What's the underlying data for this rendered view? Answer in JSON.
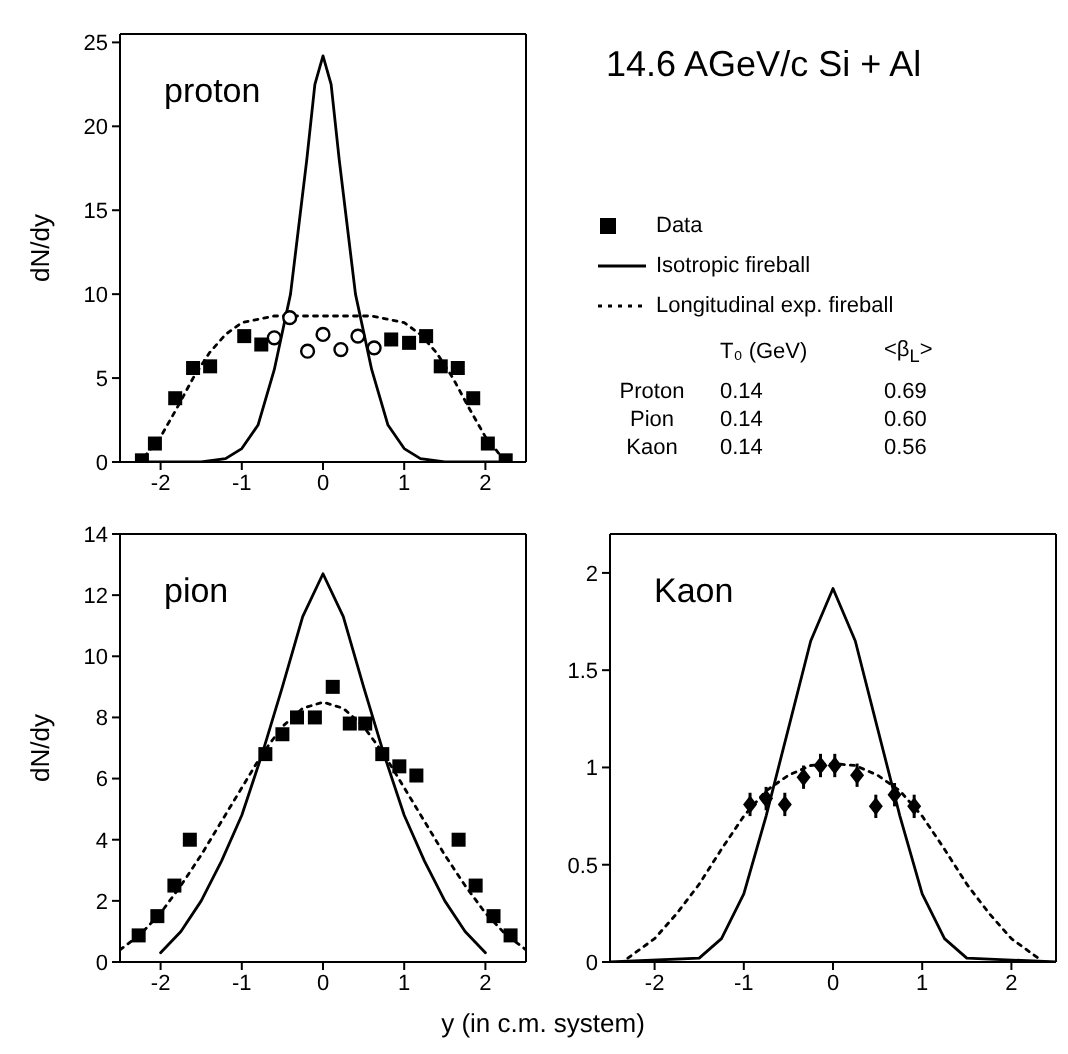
{
  "chart_data": [
    {
      "type": "line",
      "ylabel": "dN/dy",
      "annotations": [
        "proton"
      ],
      "xlim": [
        -2.5,
        2.5
      ],
      "xticks": [
        -2,
        -1,
        0,
        1,
        2
      ],
      "ylim": [
        0,
        25.5
      ],
      "yticks": [
        0,
        5,
        10,
        15,
        20,
        25
      ],
      "legend": "right",
      "series": [
        {
          "name": "Data",
          "type": "scatter",
          "marker": "square",
          "color": "#000000",
          "x": [
            -2.23,
            -2.07,
            -1.82,
            -1.6,
            -1.39,
            -0.97,
            -0.76,
            0.84,
            1.06,
            1.27,
            1.45,
            1.66,
            1.85,
            2.03,
            2.25
          ],
          "values": [
            0.1,
            1.1,
            3.8,
            5.6,
            5.7,
            7.5,
            7.0,
            7.3,
            7.1,
            7.5,
            5.7,
            5.6,
            3.8,
            1.1,
            0.1
          ]
        },
        {
          "type": "scatter",
          "marker": "circle",
          "color": "#000000",
          "x": [
            -0.6,
            -0.41,
            -0.19,
            0,
            0.22,
            0.43,
            0.63
          ],
          "values": [
            7.4,
            8.6,
            6.6,
            7.6,
            6.7,
            7.5,
            6.8
          ]
        },
        {
          "name": "Isotropic fireball",
          "line_style": "solid",
          "color": "#000000",
          "x": [
            -2.3,
            -1.5,
            -1.2,
            -1.0,
            -0.8,
            -0.6,
            -0.4,
            -0.3,
            -0.2,
            -0.1,
            0,
            0.1,
            0.2,
            0.3,
            0.4,
            0.6,
            0.8,
            1.0,
            1.2,
            1.5,
            2.3
          ],
          "values": [
            0,
            0,
            0.2,
            0.8,
            2.2,
            5.5,
            10,
            14,
            18,
            22.5,
            24.2,
            22.5,
            18,
            14,
            10,
            5.5,
            2.2,
            0.8,
            0.2,
            0,
            0
          ]
        },
        {
          "name": "Longitudinal exp. fireball",
          "line_style": "dotted",
          "color": "#000000",
          "x": [
            -2.2,
            -2.0,
            -1.8,
            -1.6,
            -1.4,
            -1.2,
            -1.0,
            -0.6,
            0,
            0.6,
            1.0,
            1.2,
            1.4,
            1.6,
            1.8,
            2.0,
            2.2
          ],
          "values": [
            0.3,
            1.5,
            3.2,
            5.0,
            6.5,
            7.6,
            8.3,
            8.7,
            8.7,
            8.7,
            8.3,
            7.6,
            6.5,
            5.0,
            3.2,
            1.5,
            0.3
          ]
        }
      ]
    },
    {
      "type": "other",
      "title": "14.6 AGeV/c Si + Al",
      "annotations": [
        "T₀ (GeV)",
        "<β$_{L}$>",
        "Proton",
        "0.14",
        "0.69",
        "Pion",
        "0.14",
        "0.60",
        "Kaon",
        "0.14",
        "0.56"
      ]
    },
    {
      "type": "line",
      "ylabel": "dN/dy",
      "annotations": [
        "pion"
      ],
      "xlim": [
        -2.5,
        2.5
      ],
      "xticks": [
        -2,
        -1,
        0,
        1,
        2
      ],
      "ylim": [
        0,
        14
      ],
      "yticks": [
        0,
        2,
        4,
        6,
        8,
        10,
        12,
        14
      ],
      "series": [
        {
          "type": "scatter",
          "marker": "square",
          "color": "#000000",
          "x": [
            -2.27,
            -2.04,
            -1.83,
            -1.64,
            -0.71,
            -0.5,
            -0.32,
            -0.1,
            0.12,
            0.33,
            0.52,
            0.73,
            0.94,
            1.15,
            1.67,
            1.88,
            2.1,
            2.31
          ],
          "values": [
            0.87,
            1.5,
            2.5,
            4.0,
            6.8,
            7.45,
            8.0,
            8.0,
            9.0,
            7.8,
            7.8,
            6.8,
            6.4,
            6.1,
            4.0,
            2.5,
            1.5,
            0.87
          ]
        },
        {
          "line_style": "solid",
          "color": "#000000",
          "x": [
            -2,
            -1.75,
            -1.5,
            -1.25,
            -1,
            -0.75,
            -0.5,
            -0.25,
            0,
            0.25,
            0.5,
            0.75,
            1,
            1.25,
            1.5,
            1.75,
            2
          ],
          "values": [
            0.3,
            1.0,
            2.0,
            3.3,
            4.8,
            6.8,
            9.0,
            11.3,
            12.7,
            11.3,
            9.0,
            6.8,
            4.8,
            3.3,
            2.0,
            1.0,
            0.3
          ]
        },
        {
          "line_style": "dotted",
          "color": "#000000",
          "x": [
            -2.5,
            -2.25,
            -2,
            -1.75,
            -1.5,
            -1.25,
            -1,
            -0.75,
            -0.5,
            -0.25,
            0,
            0.25,
            0.5,
            0.75,
            1,
            1.25,
            1.5,
            1.75,
            2,
            2.25,
            2.5
          ],
          "values": [
            0.4,
            0.9,
            1.6,
            2.5,
            3.5,
            4.6,
            5.7,
            6.8,
            7.7,
            8.3,
            8.5,
            8.3,
            7.7,
            6.8,
            5.7,
            4.6,
            3.5,
            2.5,
            1.6,
            0.9,
            0.4
          ]
        }
      ]
    },
    {
      "type": "line",
      "xlabel": "y (in c.m. system)",
      "annotations": [
        "Kaon"
      ],
      "xlim": [
        -2.5,
        2.5
      ],
      "xticks": [
        -2,
        -1,
        0,
        1,
        2
      ],
      "ylim": [
        0,
        2.2
      ],
      "yticks": [
        0,
        0.5,
        1,
        1.5,
        2
      ],
      "series": [
        {
          "type": "scatter",
          "marker": "diamond",
          "color": "#000000",
          "x": [
            -0.93,
            -0.75,
            -0.54,
            -0.33,
            -0.14,
            0.02,
            0.27,
            0.48,
            0.69,
            0.91
          ],
          "values": [
            0.81,
            0.84,
            0.81,
            0.95,
            1.01,
            1.01,
            0.96,
            0.8,
            0.86,
            0.8
          ],
          "errors": [
            0.06,
            0.06,
            0.06,
            0.06,
            0.06,
            0.06,
            0.06,
            0.06,
            0.06,
            0.06
          ]
        },
        {
          "line_style": "solid",
          "color": "#000000",
          "x": [
            -2.5,
            -1.5,
            -1.25,
            -1,
            -0.75,
            -0.5,
            -0.25,
            0,
            0.25,
            0.5,
            0.75,
            1,
            1.25,
            1.5,
            2.5
          ],
          "values": [
            0,
            0.02,
            0.12,
            0.35,
            0.75,
            1.2,
            1.65,
            1.92,
            1.65,
            1.2,
            0.75,
            0.35,
            0.12,
            0.02,
            0
          ]
        },
        {
          "line_style": "dotted",
          "color": "#000000",
          "x": [
            -2.3,
            -2,
            -1.75,
            -1.5,
            -1.25,
            -1,
            -0.75,
            -0.5,
            -0.25,
            0,
            0.25,
            0.5,
            0.75,
            1,
            1.25,
            1.5,
            1.75,
            2,
            2.3
          ],
          "values": [
            0.02,
            0.12,
            0.25,
            0.4,
            0.58,
            0.75,
            0.88,
            0.96,
            1.01,
            1.02,
            1.01,
            0.96,
            0.88,
            0.75,
            0.58,
            0.4,
            0.25,
            0.12,
            0.02
          ]
        }
      ]
    }
  ]
}
